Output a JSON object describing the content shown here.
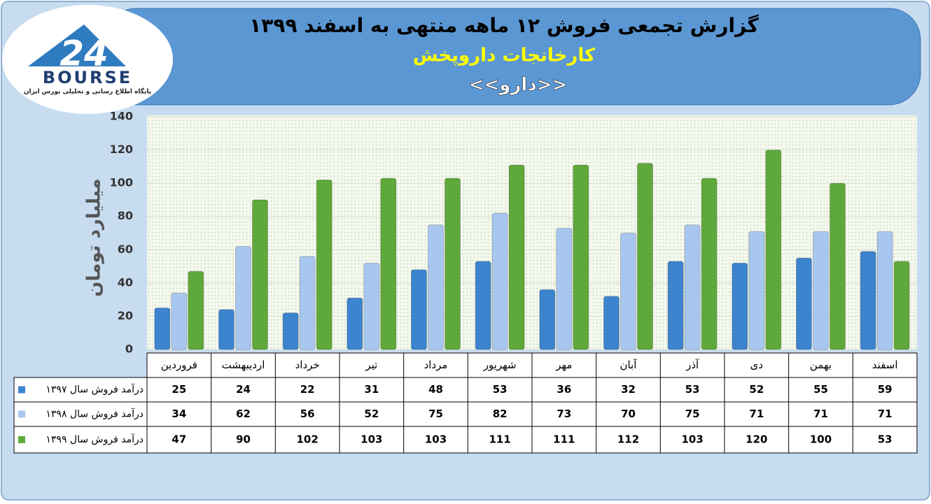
{
  "logo": {
    "name": "BOURSE",
    "tagline": "پایگاه اطلاع رسانی و تحلیلی بورس ایران"
  },
  "chart_data": {
    "type": "bar",
    "title": "گزارش تجمعی فروش ۱۲ ماهه منتهی به اسفند ۱۳۹۹",
    "subtitle": "کارخانجات داروپخش",
    "annotation": "<<دارو>>",
    "y_label": "میلیارد تومان",
    "categories": [
      "فروردین",
      "اردیبهشت",
      "خرداد",
      "تیر",
      "مرداد",
      "شهریور",
      "مهر",
      "آبان",
      "آذر",
      "دی",
      "بهمن",
      "اسفند"
    ],
    "series": [
      {
        "name": "درآمد فروش سال ۱۳۹۷",
        "color": "#3d84cf",
        "values": [
          25,
          24,
          22,
          31,
          48,
          53,
          36,
          32,
          53,
          52,
          55,
          59
        ]
      },
      {
        "name": "درآمد فروش سال ۱۳۹۸",
        "color": "#a8c7ee",
        "values": [
          34,
          62,
          56,
          52,
          75,
          82,
          73,
          70,
          75,
          71,
          71,
          71
        ]
      },
      {
        "name": "درآمد فروش سال ۱۳۹۹",
        "color": "#5fa83b",
        "values": [
          47,
          90,
          102,
          103,
          103,
          111,
          111,
          112,
          103,
          120,
          100,
          53
        ]
      }
    ],
    "ylim": [
      0,
      140
    ],
    "yticks": [
      0,
      20,
      40,
      60,
      80,
      100,
      120,
      140
    ],
    "grid": true
  }
}
